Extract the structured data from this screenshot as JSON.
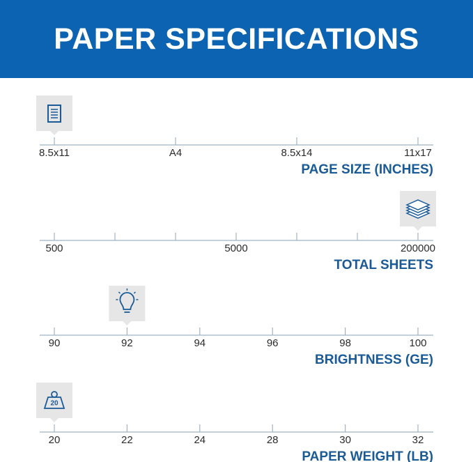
{
  "header": {
    "title": "PAPER SPECIFICATIONS"
  },
  "scales": [
    {
      "title": "PAGE SIZE (INCHES)",
      "ticks": [
        "8.5x11",
        "A4",
        "8.5x14",
        "11x17"
      ]
    },
    {
      "title": "TOTAL SHEETS",
      "ticks": [
        "500",
        null,
        null,
        "5000",
        null,
        null,
        "200000"
      ]
    },
    {
      "title": "BRIGHTNESS (GE)",
      "ticks": [
        "90",
        "92",
        "94",
        "96",
        "98",
        "100"
      ]
    },
    {
      "title": "PAPER WEIGHT (LB)",
      "ticks": [
        "20",
        "22",
        "24",
        "28",
        "30",
        "32"
      ],
      "icon_text": "20"
    }
  ]
}
